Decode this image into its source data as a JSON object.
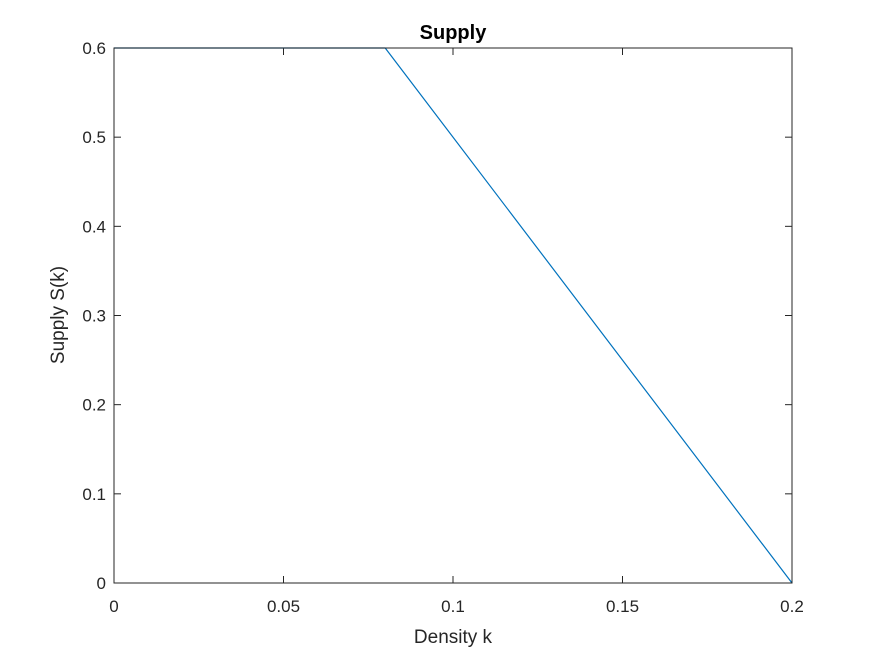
{
  "chart_data": {
    "type": "line",
    "title": "Supply",
    "xlabel": "Density k",
    "ylabel": "Supply S(k)",
    "xlim": [
      0,
      0.2
    ],
    "ylim": [
      0,
      0.6
    ],
    "grid": false,
    "x_ticks": [
      0,
      0.05,
      0.1,
      0.15,
      0.2
    ],
    "x_tick_labels": [
      "0",
      "0.05",
      "0.1",
      "0.15",
      "0.2"
    ],
    "y_ticks": [
      0,
      0.1,
      0.2,
      0.3,
      0.4,
      0.5,
      0.6
    ],
    "y_tick_labels": [
      "0",
      "0.1",
      "0.2",
      "0.3",
      "0.4",
      "0.5",
      "0.6"
    ],
    "series": [
      {
        "name": "S(k)",
        "color": "#0072BD",
        "x": [
          0,
          0.08,
          0.2
        ],
        "y": [
          0.6,
          0.6,
          0
        ]
      }
    ]
  }
}
